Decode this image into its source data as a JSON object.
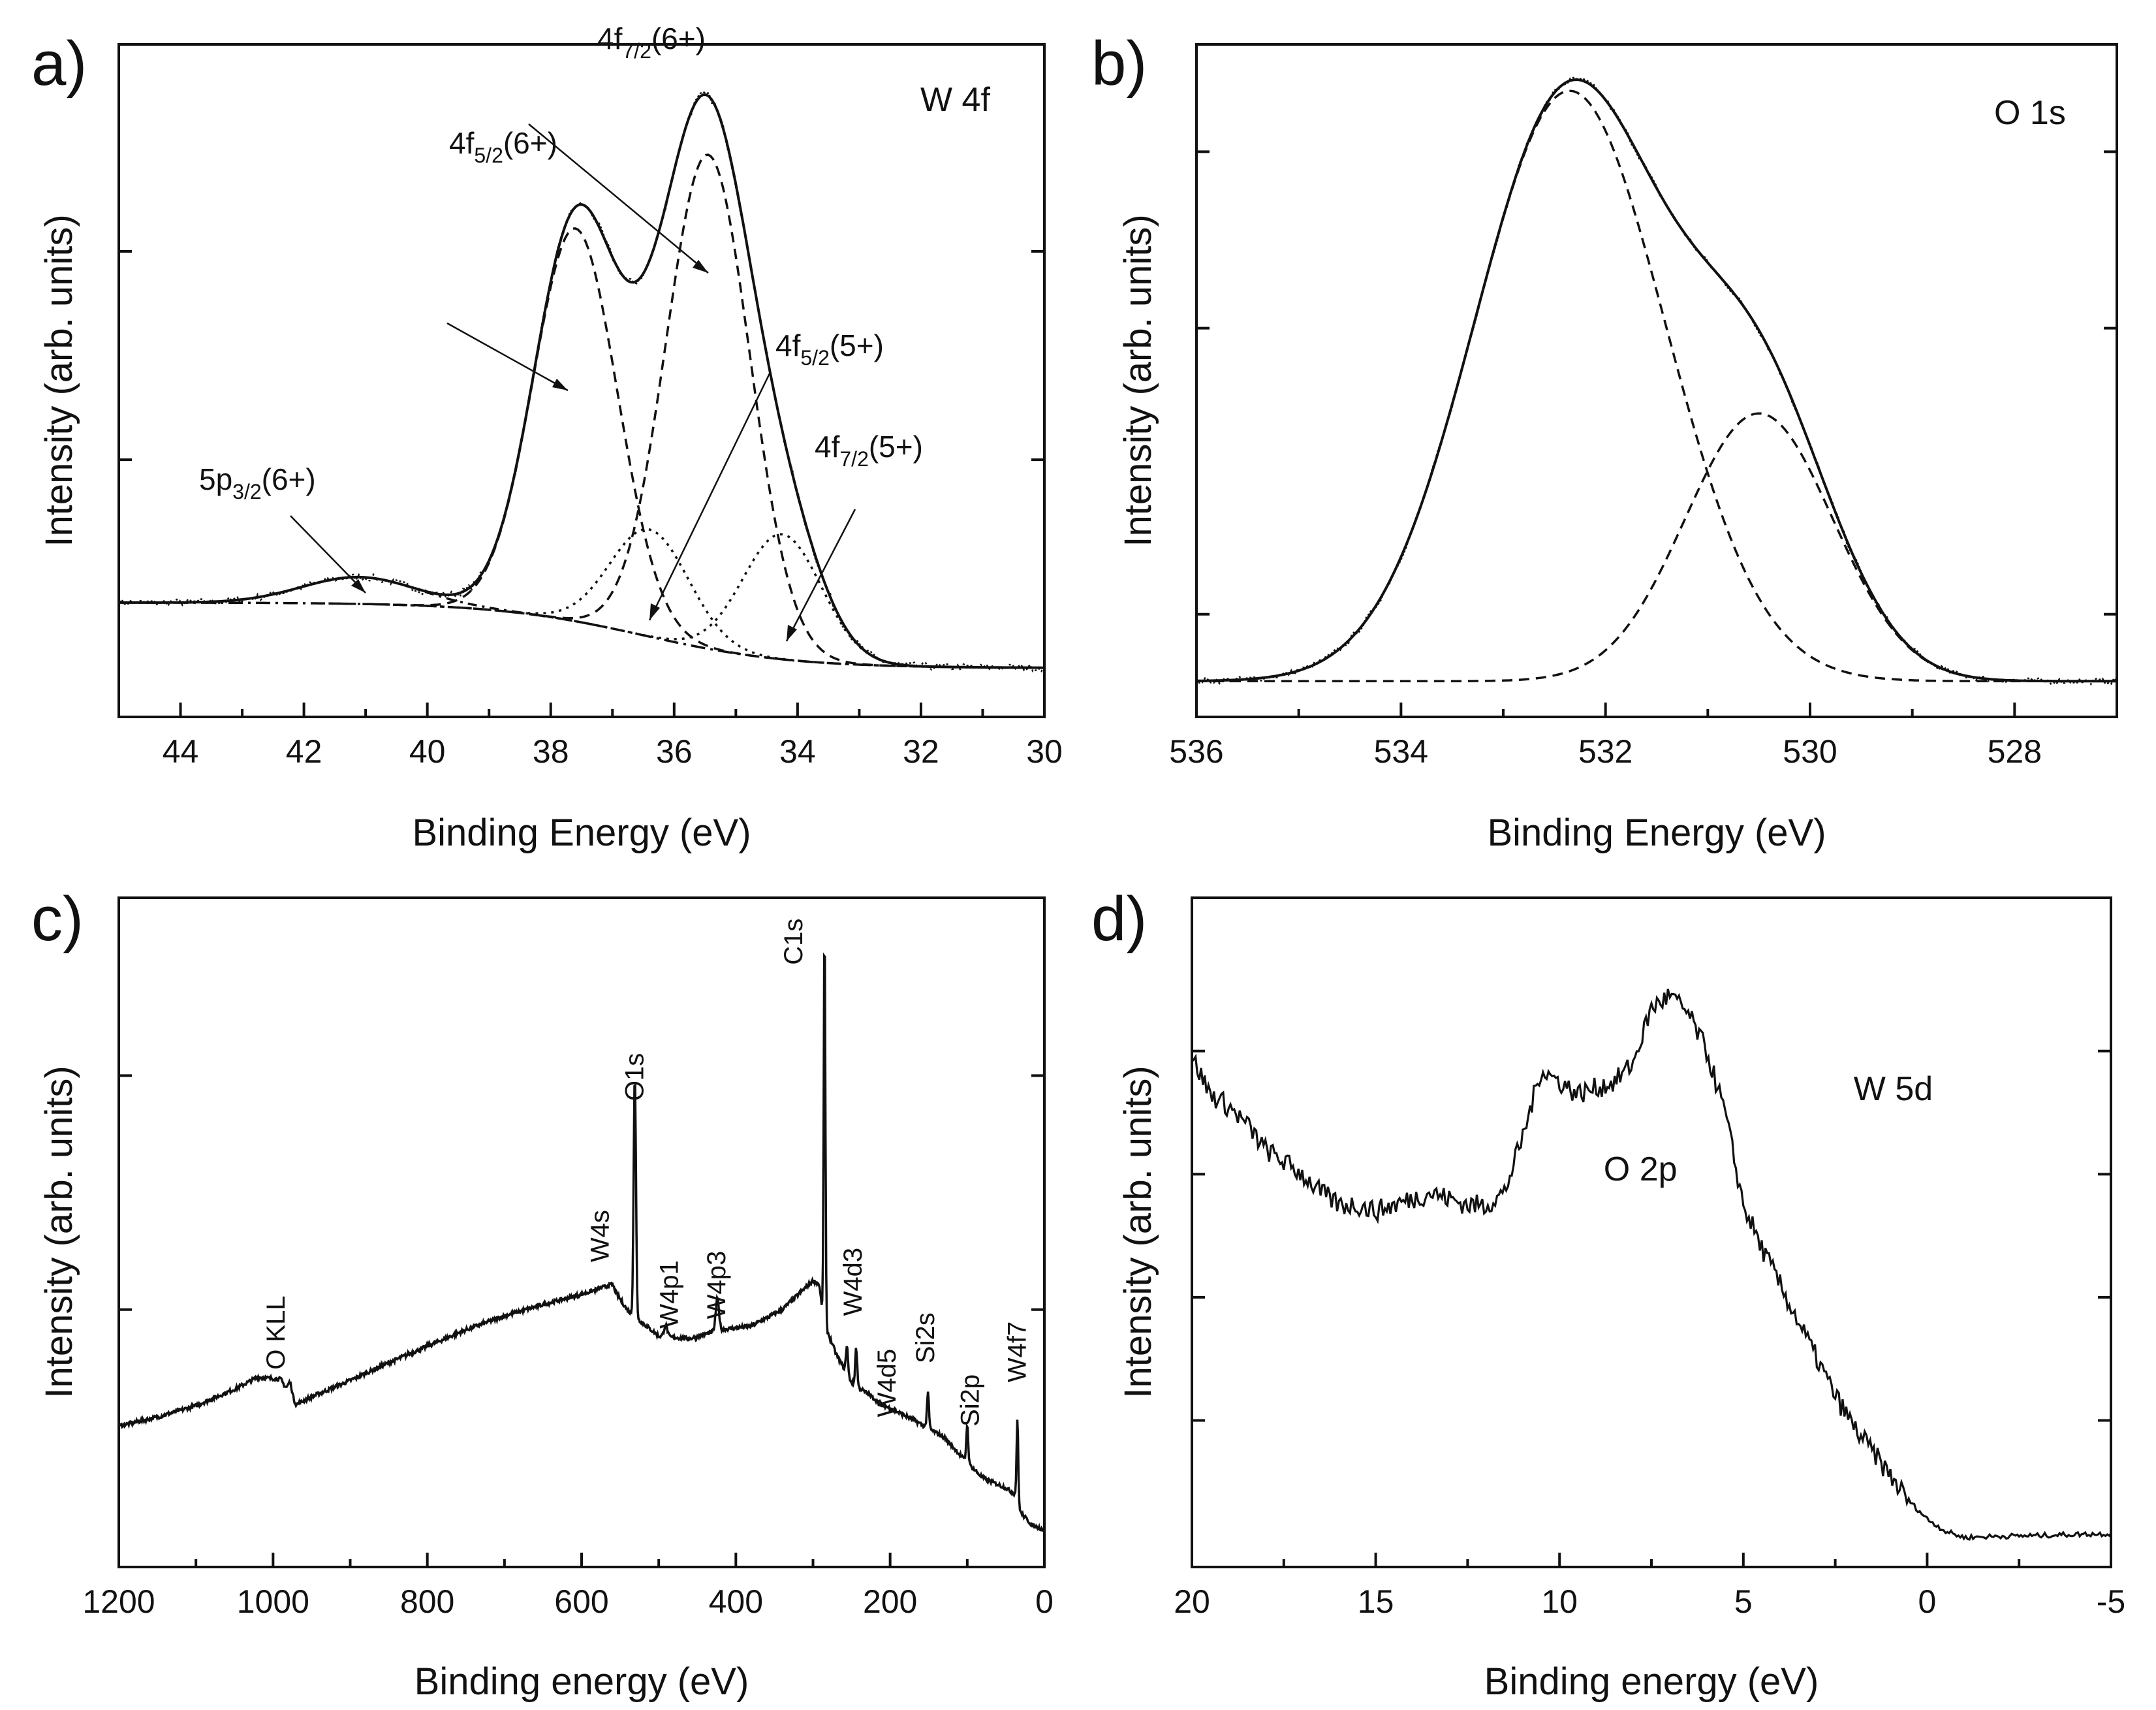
{
  "chart_data": [
    {
      "id": "a",
      "type": "line",
      "panel_letter": "a)",
      "title": "W 4f",
      "xlabel": "Binding Energy (eV)",
      "ylabel": "Intensity (arb. units)",
      "xlim": [
        45,
        30
      ],
      "ylim": [
        0,
        1
      ],
      "xticks": [
        44,
        42,
        40,
        38,
        36,
        34,
        32,
        30
      ],
      "xtick_labels": [
        "44",
        "42",
        "40",
        "38",
        "36",
        "34",
        "32",
        "30"
      ],
      "yticks": [
        0.72,
        0.37
      ],
      "peaks": [
        {
          "label": "5p",
          "sub": "3/2",
          "state": "(6+)",
          "center": 41.1,
          "amplitude": 0.045,
          "fwhm": 2.2,
          "style": "dot-dash"
        },
        {
          "label": "4f",
          "sub": "5/2",
          "state": "(6+)",
          "center": 37.6,
          "amplitude": 0.66,
          "fwhm": 1.6,
          "style": "dashed"
        },
        {
          "label": "4f",
          "sub": "7/2",
          "state": "(6+)",
          "center": 35.45,
          "amplitude": 0.83,
          "fwhm": 1.6,
          "style": "dashed"
        },
        {
          "label": "4f",
          "sub": "5/2",
          "state": "(5+)",
          "center": 36.4,
          "amplitude": 0.18,
          "fwhm": 1.5,
          "style": "dotted"
        },
        {
          "label": "4f",
          "sub": "7/2",
          "state": "(5+)",
          "center": 34.25,
          "amplitude": 0.21,
          "fwhm": 1.5,
          "style": "dotted"
        }
      ],
      "background": {
        "high_be": 0.13,
        "low_be": 0.02,
        "step_center": 36.5,
        "step_width": 1.2
      }
    },
    {
      "id": "b",
      "type": "line",
      "panel_letter": "b)",
      "title": "O 1s",
      "xlabel": "Binding Energy (eV)",
      "ylabel": "Intensity (arb. units)",
      "xlim": [
        536,
        527
      ],
      "ylim": [
        0,
        1
      ],
      "xticks": [
        536,
        534,
        532,
        530,
        528
      ],
      "xtick_labels": [
        "536",
        "534",
        "532",
        "530",
        "528"
      ],
      "yticks": [
        0.89,
        0.6,
        0.13
      ],
      "components": [
        {
          "center": 532.35,
          "amplitude": 0.97,
          "fwhm": 2.2,
          "style": "dashed"
        },
        {
          "center": 530.5,
          "amplitude": 0.44,
          "fwhm": 1.7,
          "style": "dashed"
        }
      ],
      "baseline": 0.02
    },
    {
      "id": "c",
      "type": "line",
      "panel_letter": "c)",
      "xlabel": "Binding energy (eV)",
      "ylabel": "Intensity (arb. units)",
      "xlim": [
        1200,
        0
      ],
      "ylim": [
        0,
        1
      ],
      "xticks": [
        1200,
        1000,
        800,
        600,
        400,
        200,
        0
      ],
      "xtick_labels": [
        "1200",
        "1000",
        "800",
        "600",
        "400",
        "200",
        "0"
      ],
      "yticks": [
        0.74,
        0.37
      ],
      "survey_points": [
        [
          1200,
          0.186
        ],
        [
          1150,
          0.2
        ],
        [
          1100,
          0.218
        ],
        [
          1050,
          0.244
        ],
        [
          1020,
          0.263
        ],
        [
          990,
          0.26
        ],
        [
          980,
          0.238
        ],
        [
          970,
          0.22
        ],
        [
          950,
          0.232
        ],
        [
          900,
          0.258
        ],
        [
          850,
          0.286
        ],
        [
          800,
          0.312
        ],
        [
          750,
          0.338
        ],
        [
          700,
          0.36
        ],
        [
          650,
          0.378
        ],
        [
          600,
          0.394
        ],
        [
          575,
          0.404
        ],
        [
          560,
          0.41
        ],
        [
          555,
          0.396
        ],
        [
          540,
          0.368
        ],
        [
          500,
          0.328
        ],
        [
          460,
          0.324
        ],
        [
          420,
          0.338
        ],
        [
          380,
          0.344
        ],
        [
          340,
          0.37
        ],
        [
          300,
          0.416
        ],
        [
          292,
          0.41
        ],
        [
          286,
          0.35
        ],
        [
          270,
          0.3
        ],
        [
          250,
          0.255
        ],
        [
          210,
          0.22
        ],
        [
          170,
          0.196
        ],
        [
          130,
          0.168
        ],
        [
          100,
          0.128
        ],
        [
          80,
          0.104
        ],
        [
          50,
          0.088
        ],
        [
          38,
          0.078
        ],
        [
          30,
          0.048
        ],
        [
          15,
          0.028
        ],
        [
          0,
          0.022
        ]
      ],
      "sharp_peaks": [
        {
          "label": "O KLL",
          "energy": 978,
          "height": 0.02,
          "width": 6
        },
        {
          "label": "W4s",
          "energy": 594,
          "height": 0.0,
          "width": 8
        },
        {
          "label": "O1s",
          "energy": 531,
          "height": 0.38,
          "width": 3.5
        },
        {
          "label": "W4p1",
          "energy": 491,
          "height": 0.018,
          "width": 5
        },
        {
          "label": "W4p3",
          "energy": 424,
          "height": 0.05,
          "width": 5
        },
        {
          "label": "C1s",
          "energy": 285,
          "height": 0.63,
          "width": 2.5
        },
        {
          "label": "W4d3",
          "energy": 256,
          "height": 0.045,
          "width": 3
        },
        {
          "label": "W4d5",
          "energy": 244,
          "height": 0.06,
          "width": 3
        },
        {
          "label": "Si2s",
          "energy": 151,
          "height": 0.055,
          "width": 3
        },
        {
          "label": "Si2p",
          "energy": 100,
          "height": 0.06,
          "width": 3
        },
        {
          "label": "W4f7",
          "energy": 35,
          "height": 0.13,
          "width": 2.5
        }
      ],
      "survey_labels": [
        {
          "text": "O KLL",
          "energy": 985,
          "y": 0.275
        },
        {
          "text": "W4s",
          "energy": 565,
          "y": 0.445
        },
        {
          "text": "O1s",
          "energy": 520,
          "y": 0.7
        },
        {
          "text": "W4p1",
          "energy": 475,
          "y": 0.34
        },
        {
          "text": "W4p3",
          "energy": 414,
          "y": 0.355
        },
        {
          "text": "C1s",
          "energy": 314,
          "y": 0.915
        },
        {
          "text": "W4d3",
          "energy": 237,
          "y": 0.36
        },
        {
          "text": "W4d5",
          "energy": 193,
          "y": 0.2
        },
        {
          "text": "Si2s",
          "energy": 143,
          "y": 0.285
        },
        {
          "text": "Si2p",
          "energy": 85,
          "y": 0.185
        },
        {
          "text": "W4f7",
          "energy": 24,
          "y": 0.255
        }
      ]
    },
    {
      "id": "d",
      "type": "line",
      "panel_letter": "d)",
      "xlabel": "Binding energy (eV)",
      "ylabel": "Intensity (arb. units)",
      "xlim": [
        20,
        -5
      ],
      "ylim": [
        0,
        1
      ],
      "xticks": [
        20,
        15,
        10,
        5,
        0,
        -5
      ],
      "xtick_labels": [
        "20",
        "15",
        "10",
        "5",
        "0",
        "-5"
      ],
      "yticks": [
        0.8,
        0.6,
        0.4,
        0.2
      ],
      "annotations": [
        {
          "text": "W 5d",
          "x": 2.0,
          "y": 0.72
        },
        {
          "text": "O 2p",
          "x": 8.8,
          "y": 0.59
        }
      ],
      "vb_points": [
        [
          20,
          0.79
        ],
        [
          19.5,
          0.73
        ],
        [
          19,
          0.71
        ],
        [
          18.5,
          0.68
        ],
        [
          18,
          0.64
        ],
        [
          17.5,
          0.62
        ],
        [
          17,
          0.6
        ],
        [
          16.5,
          0.57
        ],
        [
          16,
          0.55
        ],
        [
          15.5,
          0.55
        ],
        [
          15,
          0.54
        ],
        [
          14.5,
          0.55
        ],
        [
          14,
          0.56
        ],
        [
          13.5,
          0.57
        ],
        [
          13,
          0.56
        ],
        [
          12.5,
          0.55
        ],
        [
          12,
          0.55
        ],
        [
          11.5,
          0.57
        ],
        [
          11,
          0.66
        ],
        [
          10.5,
          0.77
        ],
        [
          10,
          0.75
        ],
        [
          9.5,
          0.73
        ],
        [
          9,
          0.74
        ],
        [
          8.5,
          0.75
        ],
        [
          8,
          0.78
        ],
        [
          7.5,
          0.87
        ],
        [
          7,
          0.89
        ],
        [
          6.5,
          0.86
        ],
        [
          6,
          0.8
        ],
        [
          5.5,
          0.7
        ],
        [
          5,
          0.55
        ],
        [
          4.5,
          0.48
        ],
        [
          4,
          0.42
        ],
        [
          3.5,
          0.36
        ],
        [
          3,
          0.3
        ],
        [
          2.5,
          0.24
        ],
        [
          2,
          0.19
        ],
        [
          1.5,
          0.15
        ],
        [
          1,
          0.11
        ],
        [
          0.5,
          0.07
        ],
        [
          0,
          0.04
        ],
        [
          -0.5,
          0.02
        ],
        [
          -1,
          0.01
        ],
        [
          -2,
          0.012
        ],
        [
          -3,
          0.013
        ],
        [
          -4,
          0.015
        ],
        [
          -5,
          0.016
        ]
      ]
    }
  ]
}
